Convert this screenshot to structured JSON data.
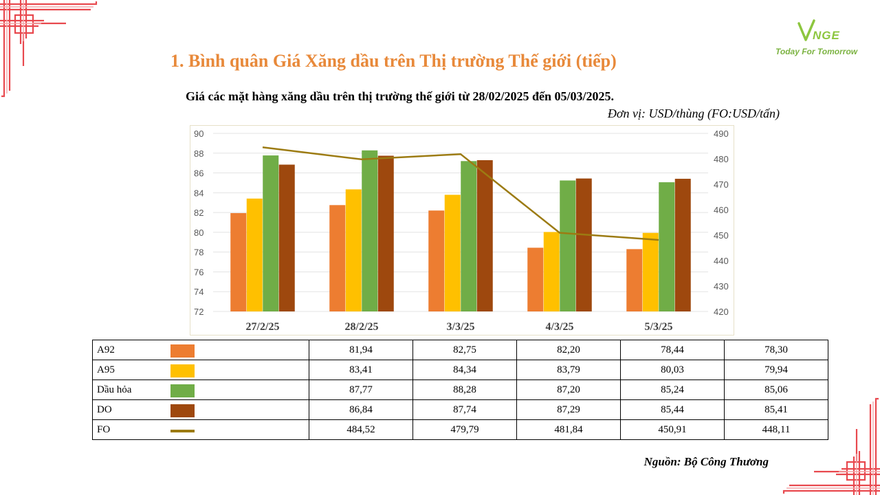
{
  "slide": {
    "title": "1. Bình quân Giá Xăng dầu trên Thị trường Thế giới (tiếp)",
    "logo_tagline": "Today For Tomorrow",
    "source": "Nguồn: Bộ Công Thương"
  },
  "chart_data": {
    "type": "bar",
    "title": "Giá các mặt hàng xăng dầu trên thị trường thế giới từ 28/02/2025 đến 05/03/2025.",
    "unit_note": "Đơn vị:  USD/thùng (FO:USD/tấn)",
    "categories": [
      "27/2/25",
      "28/2/25",
      "3/3/25",
      "4/3/25",
      "5/3/25"
    ],
    "y_left": {
      "min": 72,
      "max": 90,
      "step": 2,
      "ticks": [
        "72",
        "74",
        "76",
        "78",
        "80",
        "82",
        "84",
        "86",
        "88",
        "90"
      ]
    },
    "y_right": {
      "min": 420,
      "max": 490,
      "step": 10,
      "ticks": [
        "420",
        "430",
        "440",
        "450",
        "460",
        "470",
        "480",
        "490"
      ]
    },
    "grid": true,
    "legend": "table-below",
    "series": [
      {
        "name": "A92",
        "kind": "bar",
        "axis": "left",
        "color": "#ed7d31",
        "values": [
          81.94,
          82.75,
          82.2,
          78.44,
          78.3
        ],
        "labels": [
          "81,94",
          "82,75",
          "82,20",
          "78,44",
          "78,30"
        ]
      },
      {
        "name": "A95",
        "kind": "bar",
        "axis": "left",
        "color": "#ffc000",
        "values": [
          83.41,
          84.34,
          83.79,
          80.03,
          79.94
        ],
        "labels": [
          "83,41",
          "84,34",
          "83,79",
          "80,03",
          "79,94"
        ]
      },
      {
        "name": "Dầu hỏa",
        "kind": "bar",
        "axis": "left",
        "color": "#70ad47",
        "values": [
          87.77,
          88.28,
          87.2,
          85.24,
          85.06
        ],
        "labels": [
          "87,77",
          "88,28",
          "87,20",
          "85,24",
          "85,06"
        ]
      },
      {
        "name": "DO",
        "kind": "bar",
        "axis": "left",
        "color": "#9e480e",
        "values": [
          86.84,
          87.74,
          87.29,
          85.44,
          85.41
        ],
        "labels": [
          "86,84",
          "87,74",
          "87,29",
          "85,44",
          "85,41"
        ]
      },
      {
        "name": "FO",
        "kind": "line",
        "axis": "right",
        "color": "#9c7b12",
        "values": [
          484.52,
          479.79,
          481.84,
          450.91,
          448.11
        ],
        "labels": [
          "484,52",
          "479,79",
          "481,84",
          "450,91",
          "448,11"
        ]
      }
    ]
  }
}
